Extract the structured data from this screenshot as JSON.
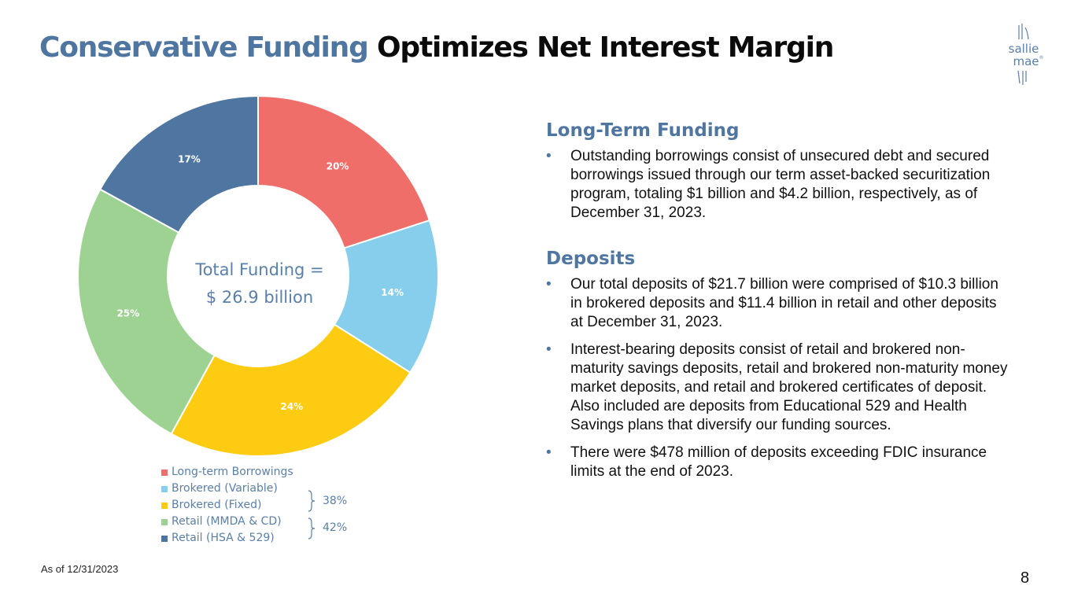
{
  "title": {
    "part1": "Conservative Funding",
    "part2": "Optimizes Net Interest Margin"
  },
  "logo": {
    "line1": "sallie",
    "line2": "mae",
    "mark": "®"
  },
  "chart_data": {
    "type": "pie",
    "center_label": [
      "Total Funding =",
      "$ 26.9 billion"
    ],
    "categories": [
      "Long-term Borrowings",
      "Brokered (Variable)",
      "Brokered (Fixed)",
      "Retail (MMDA & CD)",
      "Retail (HSA & 529)"
    ],
    "values": [
      20,
      14,
      24,
      25,
      17
    ],
    "labels": [
      "20%",
      "14%",
      "24%",
      "25%",
      "17%"
    ],
    "colors": [
      "#f06e69",
      "#87cdec",
      "#fdcb12",
      "#9dd293",
      "#4f76a0"
    ],
    "legend_position": "bottom",
    "group_annotations": [
      {
        "label": "38%",
        "covers": [
          "Brokered (Variable)",
          "Brokered (Fixed)"
        ]
      },
      {
        "label": "42%",
        "covers": [
          "Retail (MMDA & CD)",
          "Retail (HSA & 529)"
        ]
      }
    ]
  },
  "sections": [
    {
      "heading": "Long-Term Funding",
      "bullets": [
        "Outstanding borrowings consist of unsecured debt and secured borrowings issued through our term asset-backed securitization program, totaling $1 billion and $4.2 billion, respectively, as of December 31, 2023."
      ]
    },
    {
      "heading": "Deposits",
      "bullets": [
        "Our total deposits of $21.7 billion were comprised of $10.3 billion in brokered deposits and $11.4 billion in retail and other deposits at December 31, 2023.",
        "Interest-bearing deposits consist of retail and brokered non-maturity savings deposits, retail and brokered non-maturity money market deposits, and retail and brokered certificates of deposit. Also included are deposits from Educational 529 and Health Savings plans that diversify our funding sources.",
        "There were $478 million of deposits exceeding FDIC insurance limits at the end of 2023."
      ]
    }
  ],
  "bullet_char": "•",
  "footnote": "As of 12/31/2023",
  "page_number": "8"
}
